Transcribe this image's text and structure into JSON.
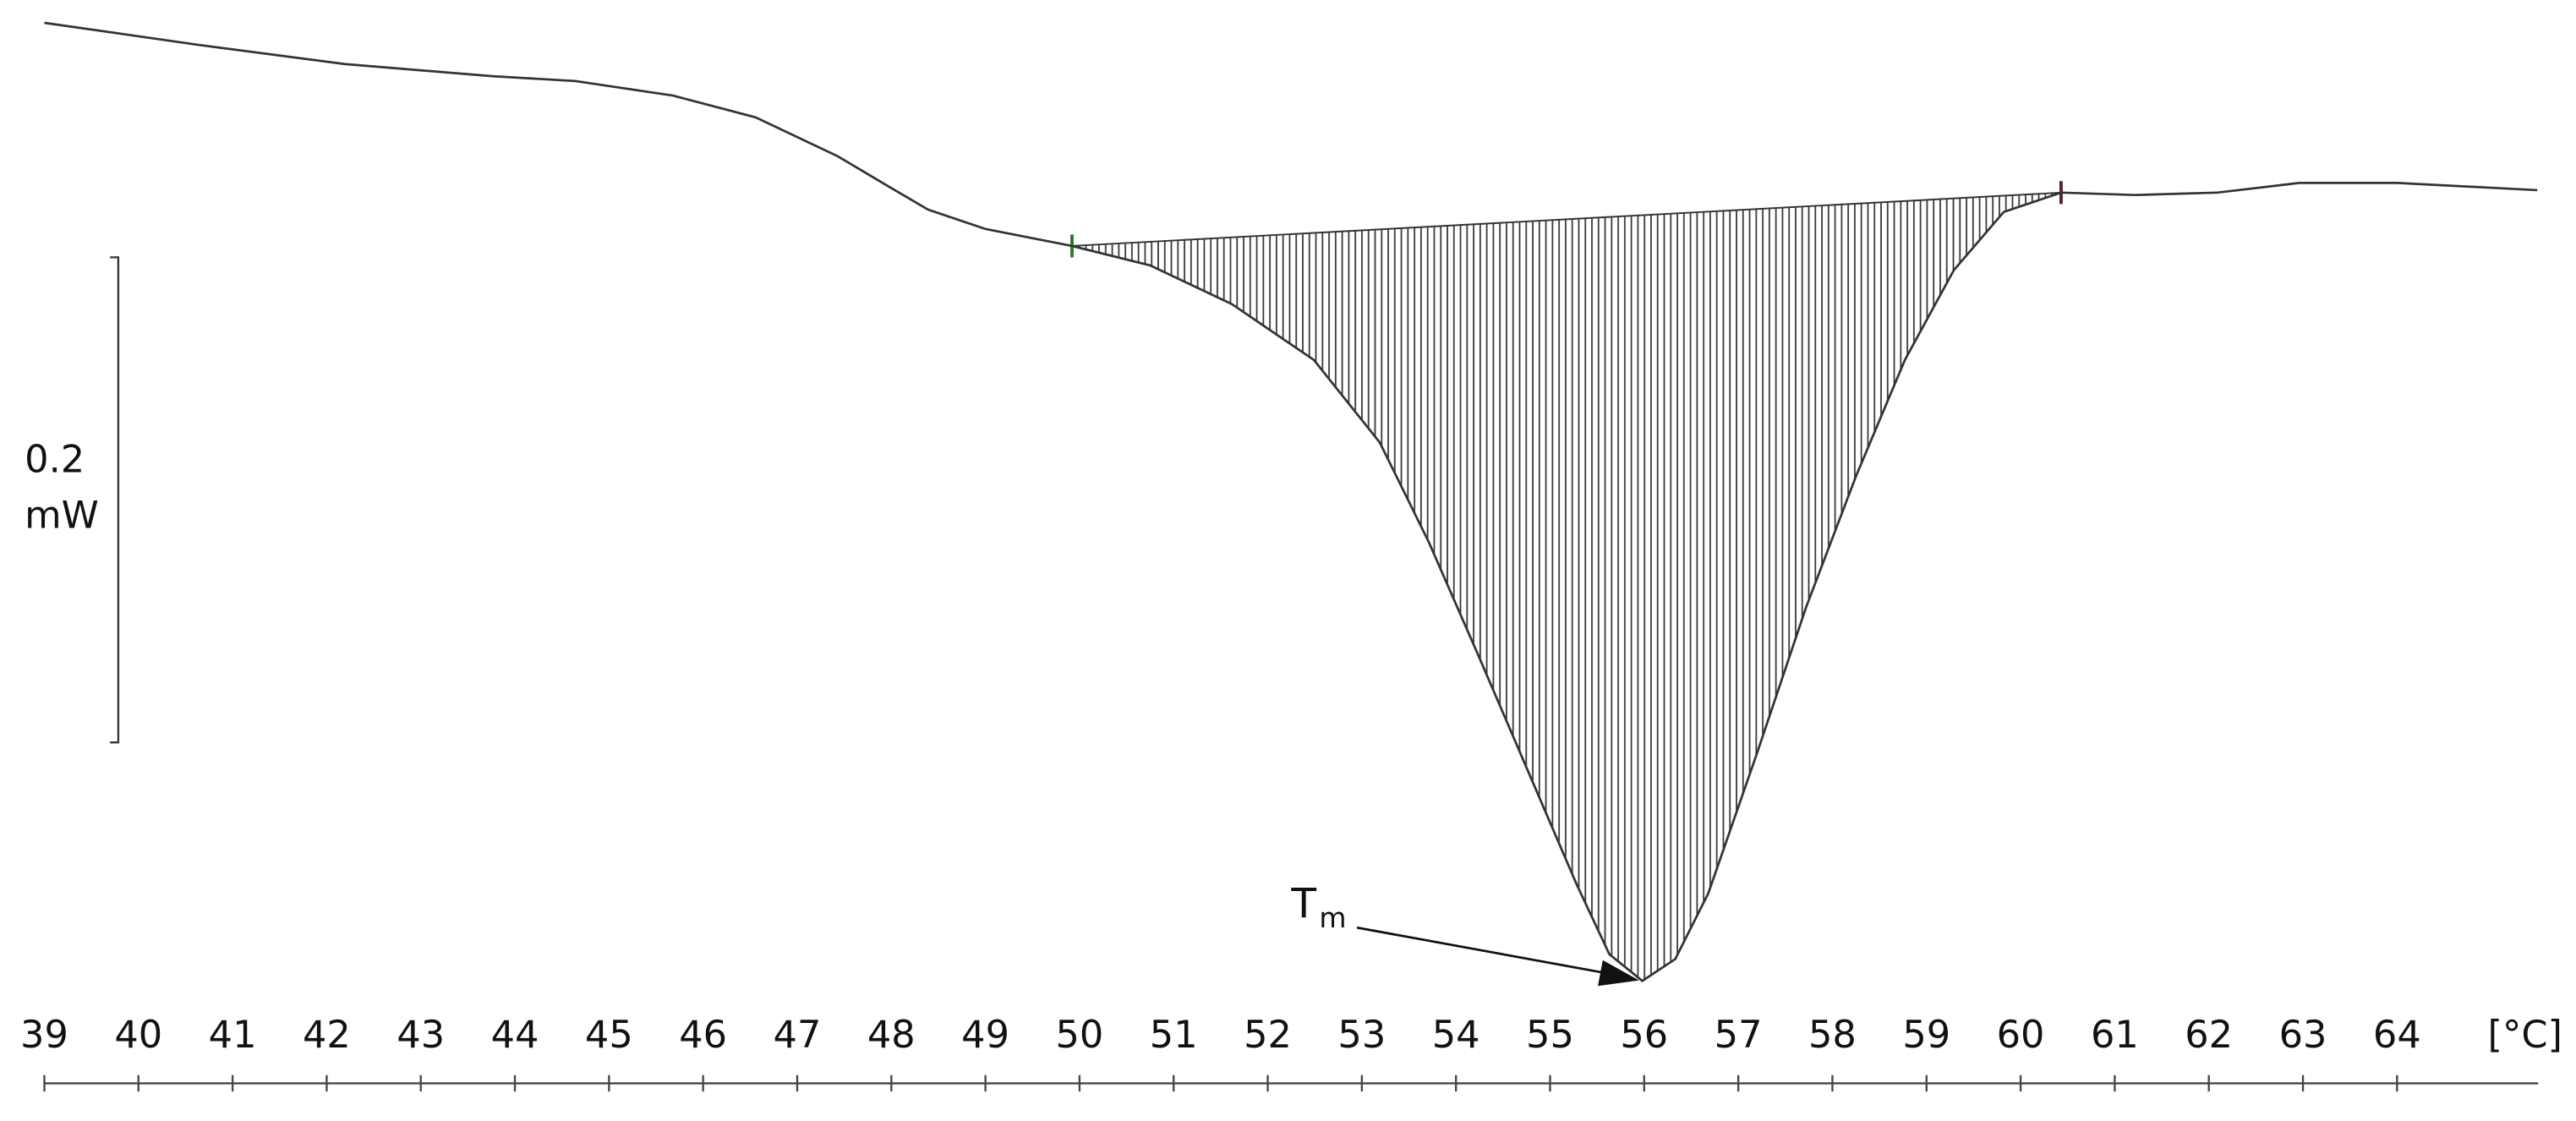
{
  "chart_data": {
    "type": "line",
    "x_label": "[°C]",
    "x": [
      39.0,
      40.62,
      42.19,
      43.76,
      44.64,
      45.68,
      46.56,
      47.43,
      47.95,
      48.39,
      49.0,
      49.92,
      50.75,
      51.62,
      52.49,
      53.19,
      53.71,
      54.24,
      54.76,
      55.28,
      55.63,
      55.98,
      56.33,
      56.68,
      57.2,
      57.72,
      58.25,
      58.77,
      59.29,
      59.82,
      60.43,
      61.22,
      62.09,
      62.96,
      64.0,
      65.49
    ],
    "series": [
      {
        "color": "#333333",
        "values": [
          0.396,
          0.387,
          0.379,
          0.374,
          0.372,
          0.366,
          0.357,
          0.341,
          0.329,
          0.319,
          0.311,
          0.304,
          0.296,
          0.28,
          0.257,
          0.223,
          0.182,
          0.135,
          0.088,
          0.041,
          0.012,
          0.001,
          0.01,
          0.037,
          0.095,
          0.155,
          0.209,
          0.257,
          0.294,
          0.318,
          0.326,
          0.325,
          0.326,
          0.33,
          0.33,
          0.327
        ]
      }
    ],
    "baseline": {
      "x": [
        49.92,
        60.43
      ],
      "y": [
        0.304,
        0.326
      ]
    },
    "annotation": {
      "text": "T",
      "subscript": "m"
    },
    "scale_bar": {
      "value": 0.2,
      "unit": "mW"
    },
    "xlim": [
      39,
      65.5
    ],
    "xticks": [
      39,
      40,
      41,
      42,
      43,
      44,
      45,
      46,
      47,
      48,
      49,
      50,
      51,
      52,
      53,
      54,
      55,
      56,
      57,
      58,
      59,
      60,
      61,
      62,
      63,
      64
    ],
    "ylim": [
      0,
      0.4
    ]
  }
}
